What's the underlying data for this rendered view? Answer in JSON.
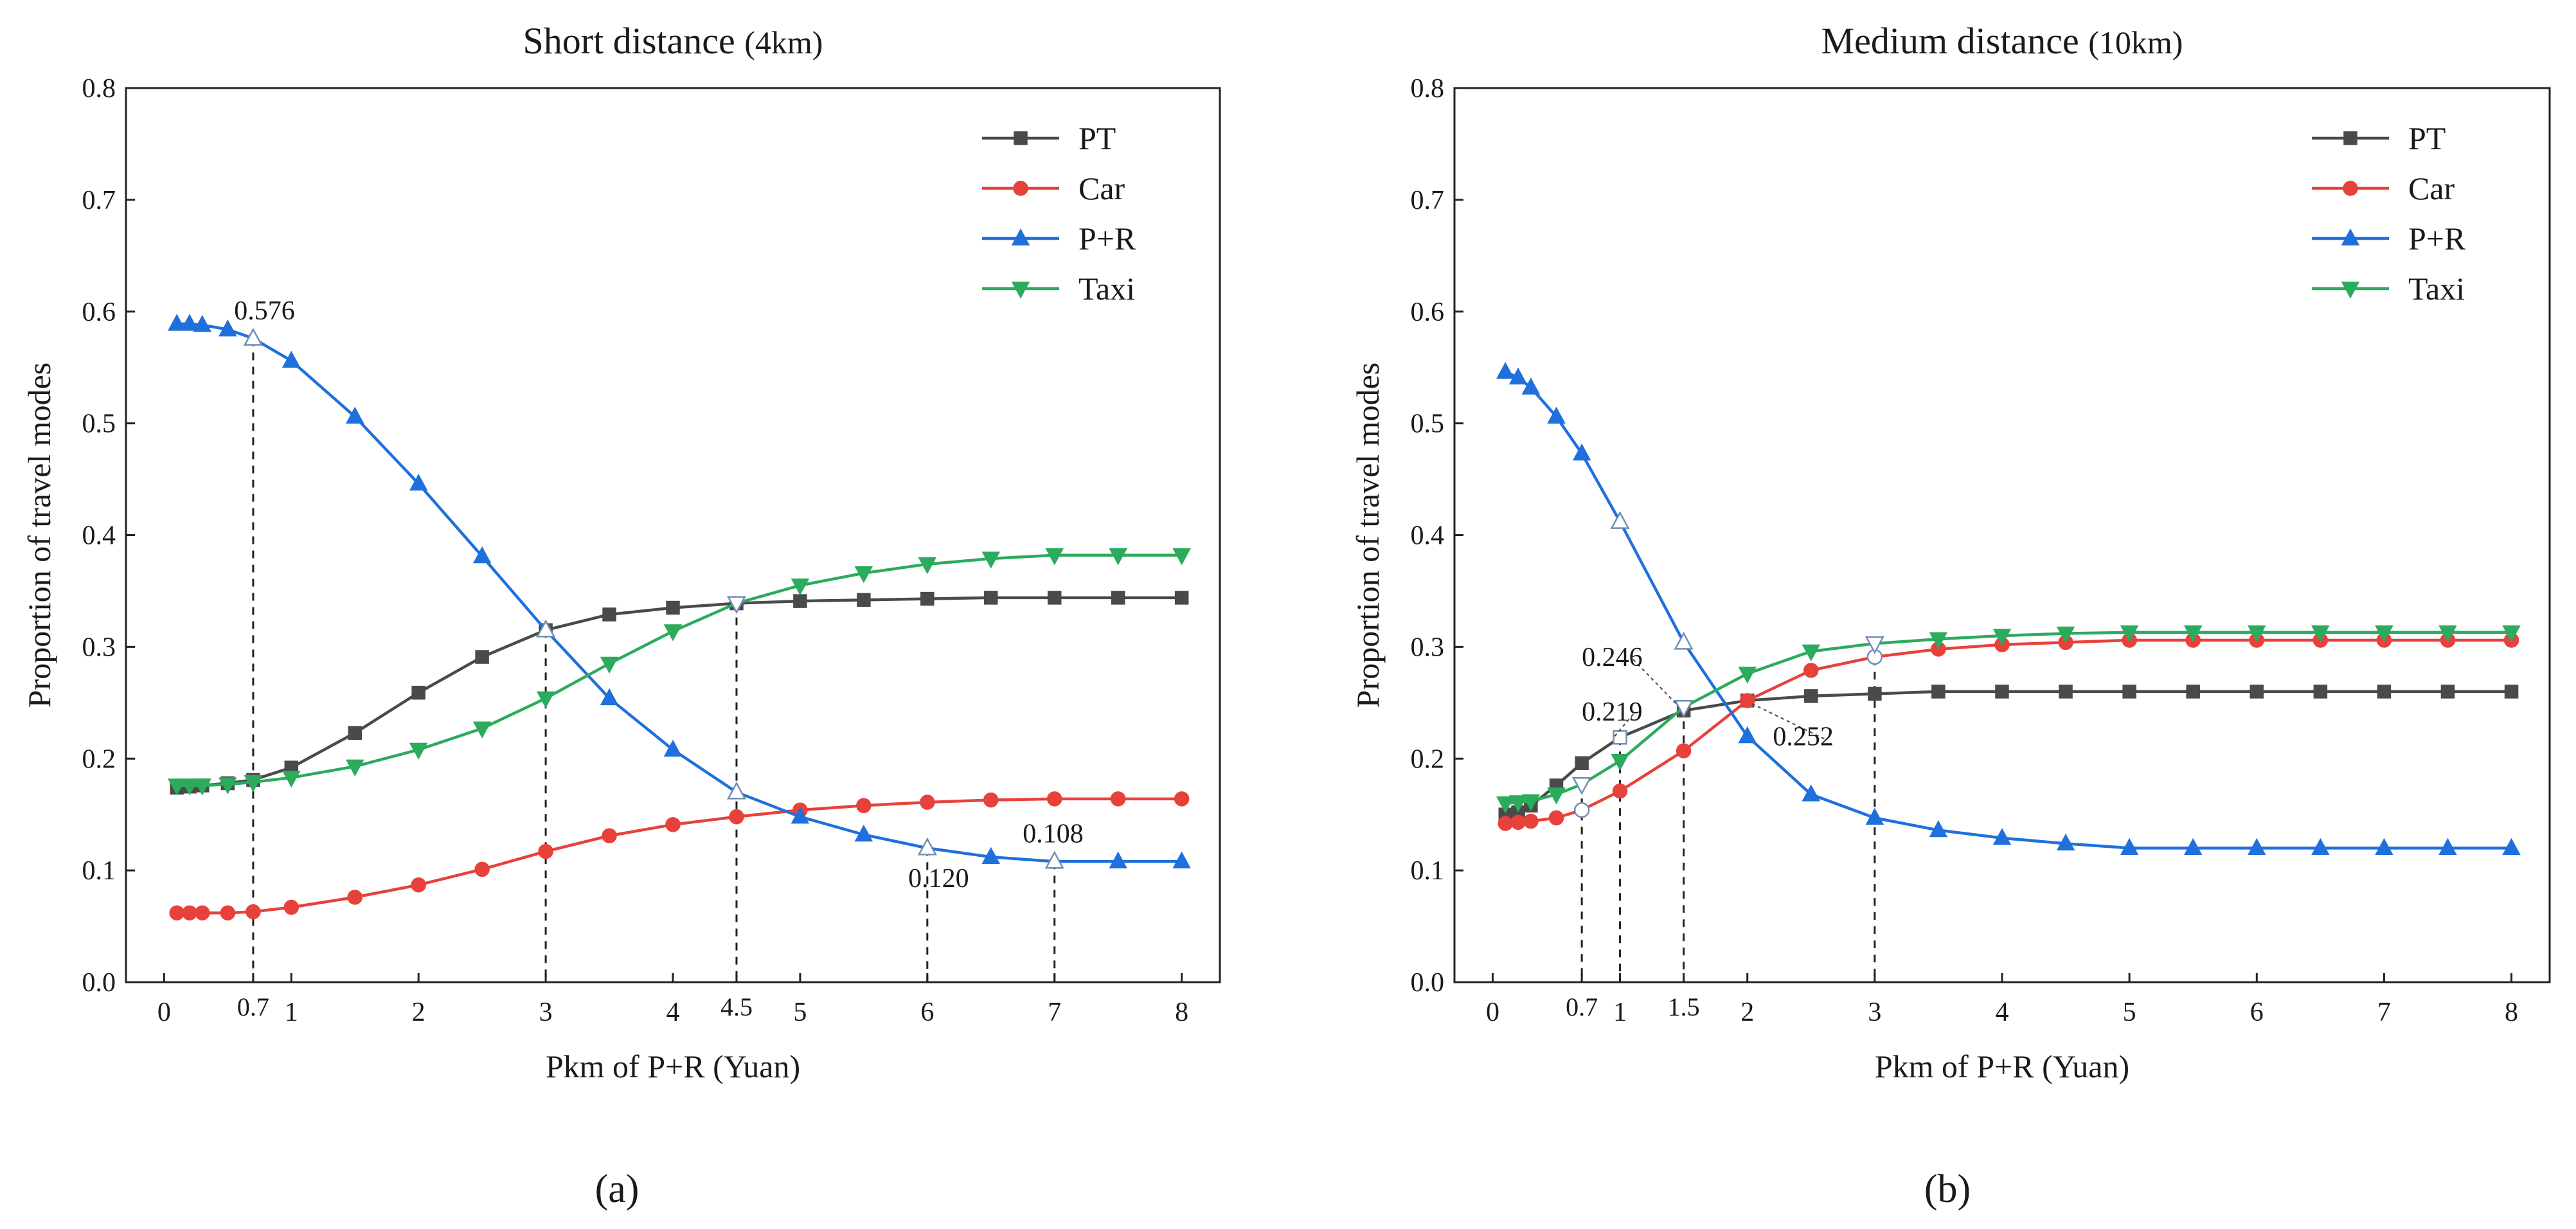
{
  "colors": {
    "PT": "#4a4a4a",
    "Car": "#e8413c",
    "P+R": "#1f70dc",
    "Taxi": "#2bab5c"
  },
  "chart_data": [
    {
      "type": "line",
      "title": "Short distance",
      "title_paren": "(4km)",
      "panel_label": "(a)",
      "xlabel": "Pkm of P+R (Yuan)",
      "ylabel": "Proportion of travel modes",
      "xlim": [
        -0.3,
        8.3
      ],
      "ylim": [
        0.0,
        0.8
      ],
      "xticks": [
        "0",
        "1",
        "2",
        "3",
        "4",
        "5",
        "6",
        "7",
        "8"
      ],
      "extra_xticks": [
        {
          "x": 0.7,
          "label": "0.7"
        },
        {
          "x": 4.5,
          "label": "4.5"
        }
      ],
      "yticks": [
        "0.0",
        "0.1",
        "0.2",
        "0.3",
        "0.4",
        "0.5",
        "0.6",
        "0.7",
        "0.8"
      ],
      "legend_position": "top-right",
      "x": [
        0.1,
        0.2,
        0.3,
        0.5,
        0.7,
        1,
        1.5,
        2,
        2.5,
        3,
        3.5,
        4,
        4.5,
        5,
        5.5,
        6,
        6.5,
        7,
        7.5,
        8
      ],
      "series": [
        {
          "name": "PT",
          "marker": "square",
          "hollow": [],
          "values": [
            0.174,
            0.175,
            0.176,
            0.178,
            0.181,
            0.192,
            0.223,
            0.259,
            0.291,
            0.315,
            0.329,
            0.335,
            0.339,
            0.341,
            0.342,
            0.343,
            0.344,
            0.344,
            0.344,
            0.344
          ]
        },
        {
          "name": "Car",
          "marker": "circle",
          "hollow": [],
          "values": [
            0.062,
            0.062,
            0.062,
            0.062,
            0.063,
            0.067,
            0.076,
            0.087,
            0.101,
            0.117,
            0.131,
            0.141,
            0.148,
            0.154,
            0.158,
            0.161,
            0.163,
            0.164,
            0.164,
            0.164
          ]
        },
        {
          "name": "P+R",
          "marker": "triangle-up",
          "hollow": [
            4,
            9,
            12,
            15,
            17
          ],
          "values": [
            0.589,
            0.589,
            0.588,
            0.584,
            0.576,
            0.556,
            0.506,
            0.446,
            0.381,
            0.315,
            0.254,
            0.208,
            0.17,
            0.148,
            0.132,
            0.12,
            0.112,
            0.108,
            0.108,
            0.108
          ]
        },
        {
          "name": "Taxi",
          "marker": "triangle-down",
          "hollow": [
            12
          ],
          "values": [
            0.176,
            0.176,
            0.176,
            0.177,
            0.179,
            0.183,
            0.193,
            0.208,
            0.227,
            0.254,
            0.285,
            0.314,
            0.339,
            0.355,
            0.366,
            0.374,
            0.379,
            0.382,
            0.382,
            0.382
          ]
        }
      ],
      "guides": [
        {
          "x": 0.7,
          "y": 0.576
        },
        {
          "x": 3,
          "y": 0.315
        },
        {
          "x": 4.5,
          "y": 0.339
        },
        {
          "x": 6,
          "y": 0.12
        },
        {
          "x": 7,
          "y": 0.108
        }
      ],
      "annotations": [
        {
          "text": "0.576",
          "x": 0.55,
          "y": 0.593
        },
        {
          "text": "0.120",
          "x": 5.85,
          "y": 0.085
        },
        {
          "text": "0.108",
          "x": 6.75,
          "y": 0.125
        }
      ]
    },
    {
      "type": "line",
      "title": "Medium distance",
      "title_paren": "(10km)",
      "panel_label": "(b)",
      "xlabel": "Pkm of P+R (Yuan)",
      "ylabel": "Proportion of travel modes",
      "xlim": [
        -0.3,
        8.3
      ],
      "ylim": [
        0.0,
        0.8
      ],
      "xticks": [
        "0",
        "1",
        "2",
        "3",
        "4",
        "5",
        "6",
        "7",
        "8"
      ],
      "extra_xticks": [
        {
          "x": 0.7,
          "label": "0.7"
        },
        {
          "x": 1.5,
          "label": "1.5"
        }
      ],
      "yticks": [
        "0.0",
        "0.1",
        "0.2",
        "0.3",
        "0.4",
        "0.5",
        "0.6",
        "0.7",
        "0.8"
      ],
      "legend_position": "top-right",
      "x": [
        0.1,
        0.2,
        0.3,
        0.5,
        0.7,
        1,
        1.5,
        2,
        2.5,
        3,
        3.5,
        4,
        4.5,
        5,
        5.5,
        6,
        6.5,
        7,
        7.5,
        8
      ],
      "series": [
        {
          "name": "PT",
          "marker": "square",
          "hollow": [
            5
          ],
          "values": [
            0.15,
            0.152,
            0.158,
            0.176,
            0.196,
            0.219,
            0.243,
            0.252,
            0.256,
            0.258,
            0.26,
            0.26,
            0.26,
            0.26,
            0.26,
            0.26,
            0.26,
            0.26,
            0.26,
            0.26
          ]
        },
        {
          "name": "Car",
          "marker": "circle",
          "hollow": [
            4,
            9
          ],
          "values": [
            0.142,
            0.143,
            0.144,
            0.147,
            0.154,
            0.171,
            0.207,
            0.252,
            0.279,
            0.291,
            0.298,
            0.302,
            0.304,
            0.306,
            0.306,
            0.306,
            0.306,
            0.306,
            0.306,
            0.306
          ]
        },
        {
          "name": "P+R",
          "marker": "triangle-up",
          "hollow": [
            5,
            6
          ],
          "values": [
            0.546,
            0.541,
            0.532,
            0.506,
            0.473,
            0.412,
            0.304,
            0.22,
            0.168,
            0.147,
            0.136,
            0.129,
            0.124,
            0.12,
            0.12,
            0.12,
            0.12,
            0.12,
            0.12,
            0.12
          ]
        },
        {
          "name": "Taxi",
          "marker": "triangle-down",
          "hollow": [
            4,
            6,
            9
          ],
          "values": [
            0.16,
            0.161,
            0.162,
            0.168,
            0.177,
            0.198,
            0.246,
            0.276,
            0.296,
            0.303,
            0.307,
            0.31,
            0.312,
            0.313,
            0.313,
            0.313,
            0.313,
            0.313,
            0.313,
            0.313
          ]
        }
      ],
      "guides": [
        {
          "x": 0.7,
          "y": 0.177
        },
        {
          "x": 1,
          "y": 0.219
        },
        {
          "x": 1.5,
          "y": 0.246
        },
        {
          "x": 3,
          "y": 0.303
        }
      ],
      "annotations": [
        {
          "text": "0.246",
          "x": 0.7,
          "y": 0.283,
          "lx": 1.45,
          "ly": 0.248
        },
        {
          "text": "0.219",
          "x": 0.7,
          "y": 0.234,
          "lx": 0.95,
          "ly": 0.219
        },
        {
          "text": "0.252",
          "x": 2.2,
          "y": 0.212,
          "lx": 2.02,
          "ly": 0.25
        }
      ]
    }
  ]
}
